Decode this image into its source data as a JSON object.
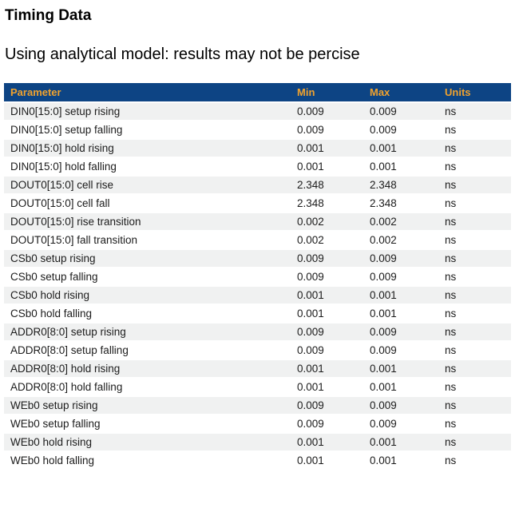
{
  "page": {
    "title": "Timing Data",
    "subtitle": "Using analytical model: results may not be percise"
  },
  "colors": {
    "table_header_bg": "#0d4484",
    "table_header_text": "#f0a22e",
    "row_stripe_bg": "#f0f1f1",
    "row_bg": "#ffffff",
    "body_text": "#1c1c1c"
  },
  "table": {
    "columns": [
      "Parameter",
      "Min",
      "Max",
      "Units"
    ],
    "rows": [
      {
        "parameter": "DIN0[15:0] setup rising",
        "min": "0.009",
        "max": "0.009",
        "units": "ns"
      },
      {
        "parameter": "DIN0[15:0] setup falling",
        "min": "0.009",
        "max": "0.009",
        "units": "ns"
      },
      {
        "parameter": "DIN0[15:0] hold rising",
        "min": "0.001",
        "max": "0.001",
        "units": "ns"
      },
      {
        "parameter": "DIN0[15:0] hold falling",
        "min": "0.001",
        "max": "0.001",
        "units": "ns"
      },
      {
        "parameter": "DOUT0[15:0] cell rise",
        "min": "2.348",
        "max": "2.348",
        "units": "ns"
      },
      {
        "parameter": "DOUT0[15:0] cell fall",
        "min": "2.348",
        "max": "2.348",
        "units": "ns"
      },
      {
        "parameter": "DOUT0[15:0] rise transition",
        "min": "0.002",
        "max": "0.002",
        "units": "ns"
      },
      {
        "parameter": "DOUT0[15:0] fall transition",
        "min": "0.002",
        "max": "0.002",
        "units": "ns"
      },
      {
        "parameter": "CSb0 setup rising",
        "min": "0.009",
        "max": "0.009",
        "units": "ns"
      },
      {
        "parameter": "CSb0 setup falling",
        "min": "0.009",
        "max": "0.009",
        "units": "ns"
      },
      {
        "parameter": "CSb0 hold rising",
        "min": "0.001",
        "max": "0.001",
        "units": "ns"
      },
      {
        "parameter": "CSb0 hold falling",
        "min": "0.001",
        "max": "0.001",
        "units": "ns"
      },
      {
        "parameter": "ADDR0[8:0] setup rising",
        "min": "0.009",
        "max": "0.009",
        "units": "ns"
      },
      {
        "parameter": "ADDR0[8:0] setup falling",
        "min": "0.009",
        "max": "0.009",
        "units": "ns"
      },
      {
        "parameter": "ADDR0[8:0] hold rising",
        "min": "0.001",
        "max": "0.001",
        "units": "ns"
      },
      {
        "parameter": "ADDR0[8:0] hold falling",
        "min": "0.001",
        "max": "0.001",
        "units": "ns"
      },
      {
        "parameter": "WEb0 setup rising",
        "min": "0.009",
        "max": "0.009",
        "units": "ns"
      },
      {
        "parameter": "WEb0 setup falling",
        "min": "0.009",
        "max": "0.009",
        "units": "ns"
      },
      {
        "parameter": "WEb0 hold rising",
        "min": "0.001",
        "max": "0.001",
        "units": "ns"
      },
      {
        "parameter": "WEb0 hold falling",
        "min": "0.001",
        "max": "0.001",
        "units": "ns"
      }
    ]
  }
}
